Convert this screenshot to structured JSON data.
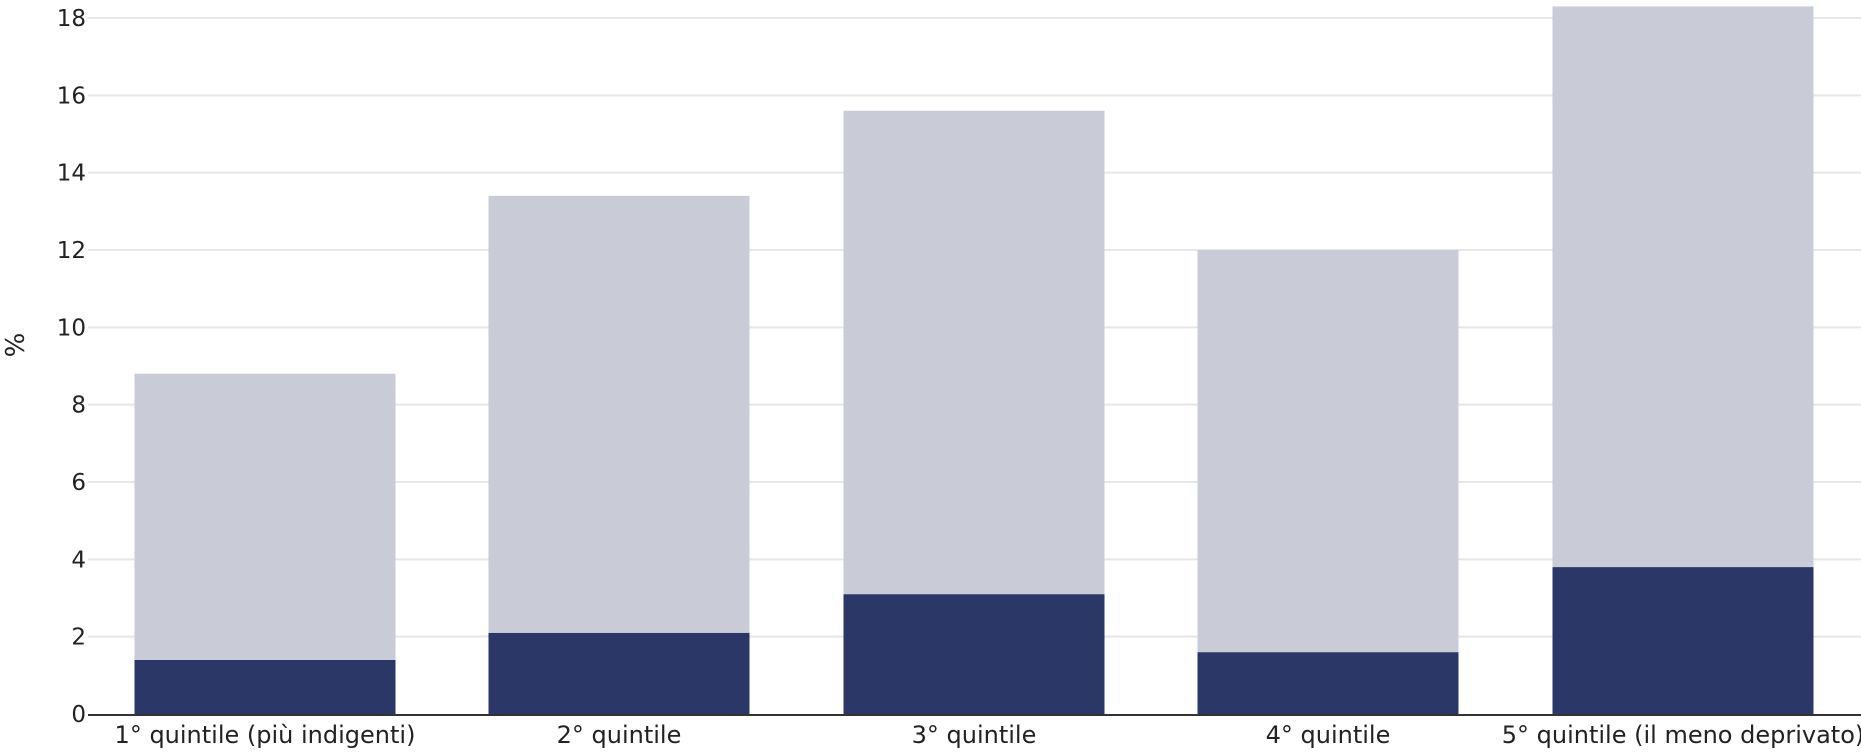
{
  "chart_data": {
    "type": "bar",
    "stacked": true,
    "ylabel": "%",
    "xlabel": "",
    "ylim": [
      0,
      18
    ],
    "yticks": [
      0,
      2,
      4,
      6,
      8,
      10,
      12,
      14,
      16,
      18
    ],
    "grid": true,
    "categories": [
      "1° quintile (più indigenti)",
      "2° quintile",
      "3° quintile",
      "4° quintile",
      "5° quintile (il meno deprivato)"
    ],
    "series": [
      {
        "color": "#2b3766",
        "values": [
          1.4,
          2.1,
          3.1,
          1.6,
          3.8
        ]
      },
      {
        "color": "#c9cbd7",
        "values": [
          7.4,
          11.3,
          12.5,
          10.4,
          14.5
        ]
      }
    ],
    "totals": [
      8.8,
      13.4,
      15.6,
      12.0,
      18.3
    ],
    "colors": {
      "grid": "#e6e7ea",
      "axis": "#333333"
    }
  }
}
